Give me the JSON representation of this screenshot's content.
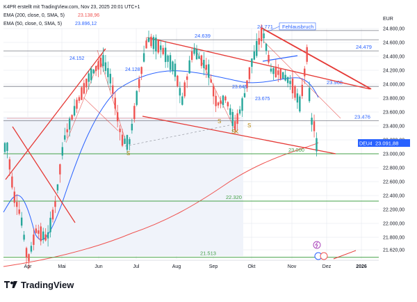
{
  "header": {
    "title_line": "K4PR erstellt mit TradingView.com, Nov 23, 2025 20:01 UTC+1",
    "ema200": {
      "label": "EMA (200, close, 0, SMA, 5)",
      "value": "23.138,96",
      "color": "#ef5350"
    },
    "ema50": {
      "label": "EMA (50, close, 0, SMA, 5)",
      "value": "23.896,12",
      "color": "#2962ff"
    }
  },
  "logo": {
    "text": "TradingView",
    "icon": "tradingview-logo-icon"
  },
  "currency": "EUR",
  "ticker_badge": {
    "symbol": "DEU40",
    "value": "23.091,88",
    "color": "#2962ff"
  },
  "colors": {
    "up": "#26a69a",
    "down": "#ef5350",
    "trend": "#e53935",
    "level": "#43a047",
    "grid": "#e0e3eb",
    "label_blue": "#2962ff"
  },
  "chart_data": {
    "type": "candlestick",
    "instrument": "DEU40",
    "currency": "EUR",
    "x_ticks": [
      "Apr",
      "Mai",
      "Jun",
      "Jul",
      "Aug",
      "Sep",
      "Okt",
      "Nov",
      "Dez",
      "2026"
    ],
    "y_ticks": [
      21620,
      21800,
      22000,
      22200,
      22400,
      22600,
      22800,
      23000,
      23200,
      23400,
      23600,
      23800,
      24000,
      24200,
      24400,
      24600,
      24800
    ],
    "y_tick_labels": [
      "21.620,00",
      "21.800,00",
      "22.000,00",
      "22.200,00",
      "22.400,00",
      "22.600,00",
      "22.800,00",
      "23.000,00",
      "23.200,00",
      "23.400,00",
      "23.600,00",
      "23.800,00",
      "24.000,00",
      "24.200,00",
      "24.400,00",
      "24.600,00",
      "24.800,00"
    ],
    "ylim": [
      21430,
      24990
    ],
    "horizontal_levels": [
      {
        "value": 24771,
        "label": "24.771",
        "annotation": "Fehlausbruch"
      },
      {
        "value": 24639,
        "label": "24.639"
      },
      {
        "value": 24479,
        "label": "24.479"
      },
      {
        "value": 23968,
        "label": "23.968"
      },
      {
        "value": 23476,
        "label": "23.476"
      },
      {
        "value": 23000,
        "label": "23.000"
      },
      {
        "value": 22320,
        "label": "22.320"
      },
      {
        "value": 21513,
        "label": "21.513"
      }
    ],
    "annotations": [
      {
        "text": "24.152",
        "value": 24152
      },
      {
        "text": "24.128",
        "value": 24128
      },
      {
        "text": "23.845",
        "value": 23845
      },
      {
        "text": "23.675",
        "value": 23675
      },
      {
        "text": "S",
        "kind": "shoulder"
      },
      {
        "text": "S",
        "kind": "shoulder"
      },
      {
        "text": "S",
        "kind": "shoulder"
      },
      {
        "text": "S",
        "kind": "shoulder"
      },
      {
        "text": "K",
        "kind": "head"
      }
    ],
    "series": [
      {
        "name": "EMA (200, close, 0, SMA, 5)",
        "last": 23138.96
      },
      {
        "name": "EMA (50, close, 0, SMA, 5)",
        "last": 23896.12
      }
    ],
    "last_price": 23091.88
  }
}
